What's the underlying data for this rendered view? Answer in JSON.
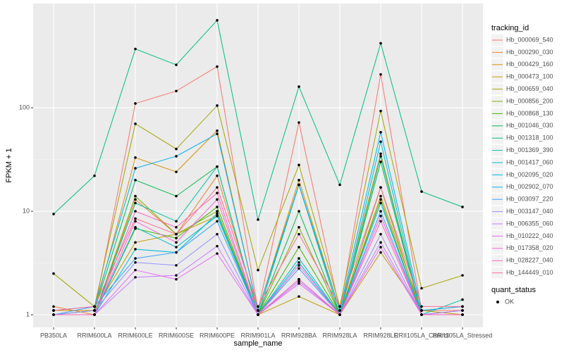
{
  "chart_data": {
    "type": "line",
    "x_label": "sample_name",
    "y_label": "FPKM + 1",
    "legend_title": "tracking_id",
    "point_legend_title": "quant_status",
    "point_legend_label": "OK",
    "log_scale": true,
    "grid": true,
    "categories": [
      "PB350LA",
      "RRIM600LA",
      "RRIM600LE",
      "RRIM600SE",
      "RRIM600PE",
      "RRIM901LA",
      "RRIM928BA",
      "RRIM928LA",
      "RRIM928LE",
      "RRII105LA_Control",
      "RRII105LA_Stressed"
    ],
    "ylim": [
      0.755,
      1017
    ],
    "yticks": [
      1,
      10,
      100
    ],
    "series": [
      {
        "name": "Hb_000069_540",
        "color": "#F8766D",
        "values": [
          1.1,
          1.1,
          110,
          145,
          250,
          1.1,
          72,
          1.1,
          210,
          1.1,
          1.1
        ]
      },
      {
        "name": "Hb_000290_030",
        "color": "#EA8331",
        "values": [
          1.2,
          1.0,
          13,
          6,
          22,
          1.1,
          18,
          1.0,
          14,
          1.1,
          1.2
        ]
      },
      {
        "name": "Hb_000429_160",
        "color": "#D89000",
        "values": [
          1.1,
          1.1,
          33,
          24,
          60,
          1.1,
          20,
          1.1,
          36,
          1.0,
          1.0
        ]
      },
      {
        "name": "Hb_000473_100",
        "color": "#C09B00",
        "values": [
          1.0,
          1.1,
          5,
          6,
          9,
          1.0,
          1.5,
          1.0,
          4,
          1.1,
          1.0
        ]
      },
      {
        "name": "Hb_000659_040",
        "color": "#A3A500",
        "values": [
          2.5,
          1.2,
          70,
          40,
          105,
          2.7,
          28,
          1.2,
          93,
          1.8,
          2.4
        ]
      },
      {
        "name": "Hb_000856_200",
        "color": "#7CAE00",
        "values": [
          1.0,
          1.0,
          14,
          6,
          10,
          1.0,
          7,
          1.0,
          17,
          1.0,
          1.1
        ]
      },
      {
        "name": "Hb_000868_130",
        "color": "#39B600",
        "values": [
          1.0,
          1.0,
          6.8,
          5.5,
          11,
          1.0,
          4.5,
          1.0,
          13,
          1.0,
          1.0
        ]
      },
      {
        "name": "Hb_001046_030",
        "color": "#00BB4E",
        "values": [
          1.0,
          1.1,
          20,
          14,
          27,
          1.0,
          10,
          1.0,
          30,
          1.0,
          1.0
        ]
      },
      {
        "name": "Hb_001318_100",
        "color": "#00BF7D",
        "values": [
          9.4,
          22,
          370,
          260,
          700,
          8.3,
          160,
          18,
          420,
          15.5,
          11
        ]
      },
      {
        "name": "Hb_001369_390",
        "color": "#00C1A3",
        "values": [
          1.0,
          1.0,
          12,
          8,
          27,
          1.0,
          18,
          1.0,
          34,
          1.0,
          1.4
        ]
      },
      {
        "name": "Hb_001417_060",
        "color": "#00BFC4",
        "values": [
          1.0,
          1.0,
          7,
          4.5,
          9,
          1.0,
          3.5,
          1.0,
          47,
          1.0,
          1.0
        ]
      },
      {
        "name": "Hb_002095_020",
        "color": "#00BAE0",
        "values": [
          1.0,
          1.0,
          4.3,
          4,
          9.5,
          1.0,
          3.2,
          1.0,
          12,
          1.0,
          1.0
        ]
      },
      {
        "name": "Hb_002902_070",
        "color": "#00B0F6",
        "values": [
          1.1,
          1.2,
          26,
          34,
          56,
          1.1,
          18,
          1.1,
          58,
          1.1,
          1.2
        ]
      },
      {
        "name": "Hb_003097_220",
        "color": "#35A2FF",
        "values": [
          1.0,
          1.2,
          3.5,
          4,
          8,
          1.0,
          2.8,
          1.0,
          10,
          1.0,
          1.1
        ]
      },
      {
        "name": "Hb_003147_040",
        "color": "#9590FF",
        "values": [
          1.0,
          1.1,
          3.2,
          3,
          6,
          1.0,
          2.2,
          1.0,
          6,
          1.0,
          1.0
        ]
      },
      {
        "name": "Hb_006355_060",
        "color": "#C77CFF",
        "values": [
          1.0,
          1.0,
          2.3,
          2.4,
          4.6,
          1.0,
          2.1,
          1.0,
          5,
          1.0,
          1.1
        ]
      },
      {
        "name": "Hb_010222_040",
        "color": "#E76BF3",
        "values": [
          1.0,
          1.0,
          2.7,
          2.2,
          3.9,
          1.0,
          2.0,
          1.0,
          4.5,
          1.0,
          1.0
        ]
      },
      {
        "name": "Hb_017358_020",
        "color": "#FA62DB",
        "values": [
          1.0,
          1.0,
          8,
          5,
          13,
          1.0,
          3.0,
          1.0,
          9,
          1.0,
          1.0
        ]
      },
      {
        "name": "Hb_028227_040",
        "color": "#FF62BC",
        "values": [
          1.0,
          1.0,
          10,
          7,
          15,
          1.0,
          2.2,
          1.0,
          8,
          1.0,
          1.0
        ]
      },
      {
        "name": "Hb_144449_010",
        "color": "#FF6C91",
        "values": [
          1.1,
          1.2,
          8.5,
          6,
          17,
          1.2,
          6,
          1.2,
          17,
          1.2,
          1.2
        ]
      }
    ]
  }
}
